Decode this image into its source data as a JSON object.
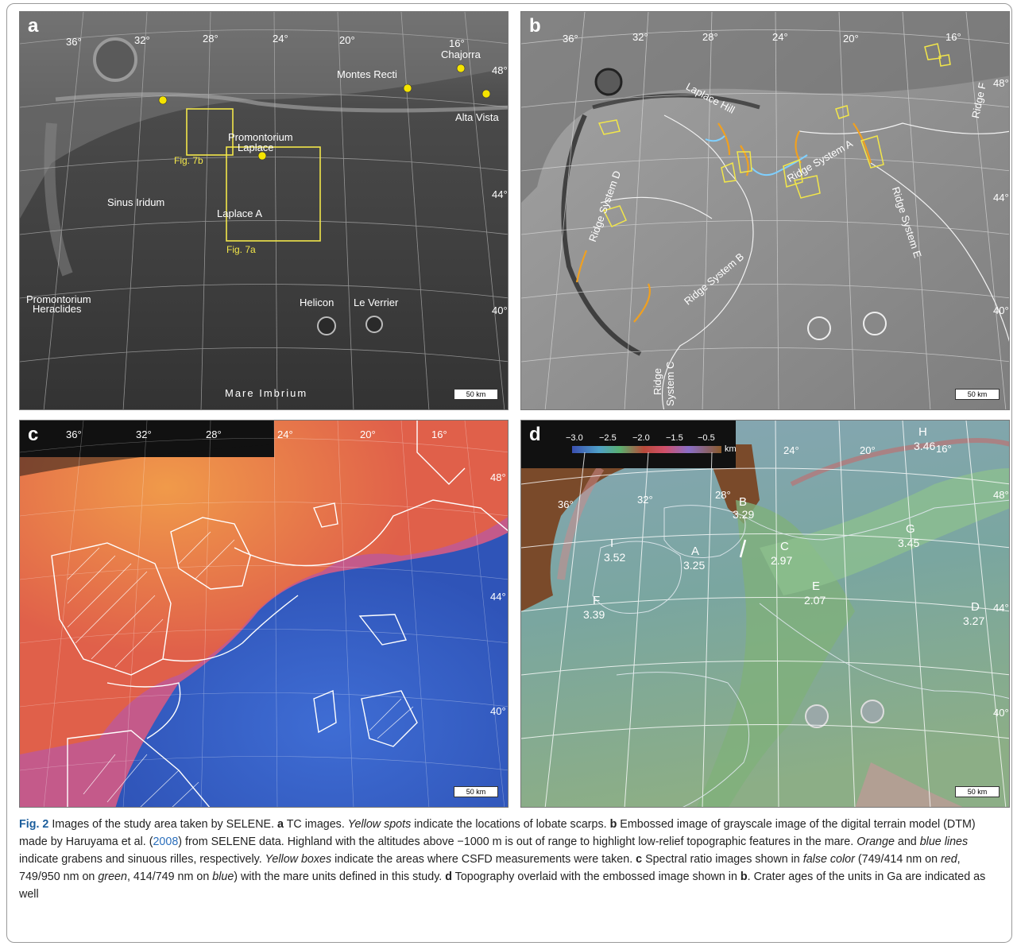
{
  "panel_a": {
    "label": "a",
    "lon_ticks": [
      "36°",
      "32°",
      "28°",
      "24°",
      "20°",
      "16°"
    ],
    "lat_ticks": [
      "48°",
      "44°",
      "40°"
    ],
    "features": {
      "chajorra": "Chajorra",
      "montes_recti": "Montes Recti",
      "alta_vista": "Alta Vista",
      "promontorium_laplace_1": "Promontorium",
      "promontorium_laplace_2": "Laplace",
      "sinus_iridum": "Sinus  Iridum",
      "laplace_a": "Laplace A",
      "promontorium_heraclides_1": "Promontorium",
      "promontorium_heraclides_2": "Heraclides",
      "helicon": "Helicon",
      "le_verrier": "Le Verrier",
      "mare_imbrium": "Mare Imbrium"
    },
    "fig_7b": "Fig. 7b",
    "fig_7a": "Fig. 7a",
    "scale": "50 km"
  },
  "panel_b": {
    "label": "b",
    "lon_ticks": [
      "36°",
      "32°",
      "28°",
      "24°",
      "20°",
      "16°"
    ],
    "lat_ticks": [
      "48°",
      "44°",
      "40°"
    ],
    "laplace_hill": "Laplace Hill",
    "ridge_a": "Ridge System A",
    "ridge_b": "Ridge System B",
    "ridge_c_1": "Ridge",
    "ridge_c_2": "System C",
    "ridge_d": "Ridge System D",
    "ridge_e": "Ridge System E",
    "ridge_f": "Ridge F",
    "scale": "50 km"
  },
  "panel_c": {
    "label": "c",
    "lon_ticks": [
      "36°",
      "32°",
      "28°",
      "24°",
      "20°",
      "16°"
    ],
    "lat_ticks": [
      "48°",
      "44°",
      "40°"
    ],
    "scale": "50 km"
  },
  "panel_d": {
    "label": "d",
    "colorbar_ticks": [
      "−3.0",
      "−2.5",
      "−2.0",
      "−1.5",
      "−0.5"
    ],
    "colorbar_unit": "km",
    "lon_ticks": [
      "36°",
      "32°",
      "28°",
      "24°",
      "20°",
      "16°"
    ],
    "lat_ticks": [
      "48°",
      "44°",
      "40°"
    ],
    "units": [
      {
        "name": "B",
        "age": "3.29"
      },
      {
        "name": "I",
        "age": "3.52"
      },
      {
        "name": "A",
        "age": "3.25"
      },
      {
        "name": "C",
        "age": "2.97"
      },
      {
        "name": "G",
        "age": "3.45"
      },
      {
        "name": "E",
        "age": "2.07"
      },
      {
        "name": "F",
        "age": "3.39"
      },
      {
        "name": "D",
        "age": "3.27"
      },
      {
        "name": "H",
        "age": "3.46"
      }
    ],
    "scale": "50 km"
  },
  "caption": {
    "fig_label": "Fig. 2",
    "intro": "  Images of the study area taken by SELENE. ",
    "a_label": "a",
    "a_text_1": " TC images. ",
    "a_italic": "Yellow spots",
    "a_text_2": " indicate the locations of lobate scarps. ",
    "b_label": "b",
    "b_text_1": " Embossed image of grayscale image of the digital terrain model (DTM) made by Haruyama et al. (",
    "b_year": "2008",
    "b_text_2": ") from SELENE data. Highland with the altitudes above −1000 m is out of range to highlight low-relief topographic features in the mare. ",
    "b_italic_1": "Orange",
    "b_text_3": " and ",
    "b_italic_2": "blue lines",
    "b_text_4": " indicate grabens and sinuous rilles, respectively. ",
    "b_italic_3": "Yellow boxes",
    "b_text_5": " indicate the areas where CSFD measurements were taken. ",
    "c_label": "c",
    "c_text_1": " Spectral ratio images shown in ",
    "c_italic_1": "false color",
    "c_text_2": " (749/414 nm on ",
    "c_italic_2": "red",
    "c_text_3": ", 749/950 nm on ",
    "c_italic_3": "green",
    "c_text_4": ", 414/749 nm on ",
    "c_italic_4": "blue",
    "c_text_5": ") with the mare units defined in this study. ",
    "d_label": "d",
    "d_text_1": " Topography overlaid with the embossed image shown in ",
    "d_ref": "b",
    "d_text_2": ". Crater ages of the units in Ga are indicated as well"
  }
}
